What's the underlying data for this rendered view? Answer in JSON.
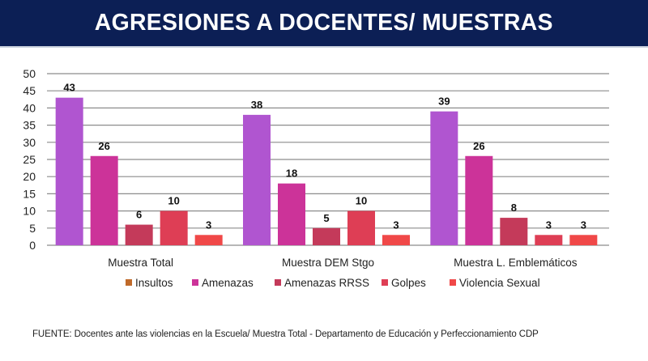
{
  "header": {
    "title": "AGRESIONES A DOCENTES/ MUESTRAS"
  },
  "chart_data": {
    "type": "bar",
    "title": "",
    "xlabel": "",
    "ylabel": "",
    "ylim": [
      0,
      50
    ],
    "yticks": [
      0,
      5,
      10,
      15,
      20,
      25,
      30,
      35,
      40,
      45,
      50
    ],
    "grid": true,
    "legend_position": "bottom",
    "categories": [
      "Muestra Total",
      "Muestra DEM Stgo",
      "Muestra L. Emblemáticos"
    ],
    "series": [
      {
        "name": "Insultos",
        "bar_color": "#b055d0",
        "legend_color": "#c06a2a",
        "values": [
          43,
          38,
          39
        ]
      },
      {
        "name": "Amenazas",
        "bar_color": "#cc3399",
        "legend_color": "#cc3399",
        "values": [
          26,
          18,
          26
        ]
      },
      {
        "name": "Amenazas RRSS",
        "bar_color": "#c43a5a",
        "legend_color": "#c43a5a",
        "values": [
          6,
          5,
          8
        ]
      },
      {
        "name": "Golpes",
        "bar_color": "#de3e55",
        "legend_color": "#de3e55",
        "values": [
          10,
          10,
          3
        ]
      },
      {
        "name": "Violencia Sexual",
        "bar_color": "#f04848",
        "legend_color": "#f04848",
        "values": [
          3,
          3,
          3
        ]
      }
    ]
  },
  "footer": {
    "source": "FUENTE: Docentes ante las violencias en la Escuela/ Muestra Total - Departamento de Educación y Perfeccionamiento CDP"
  }
}
